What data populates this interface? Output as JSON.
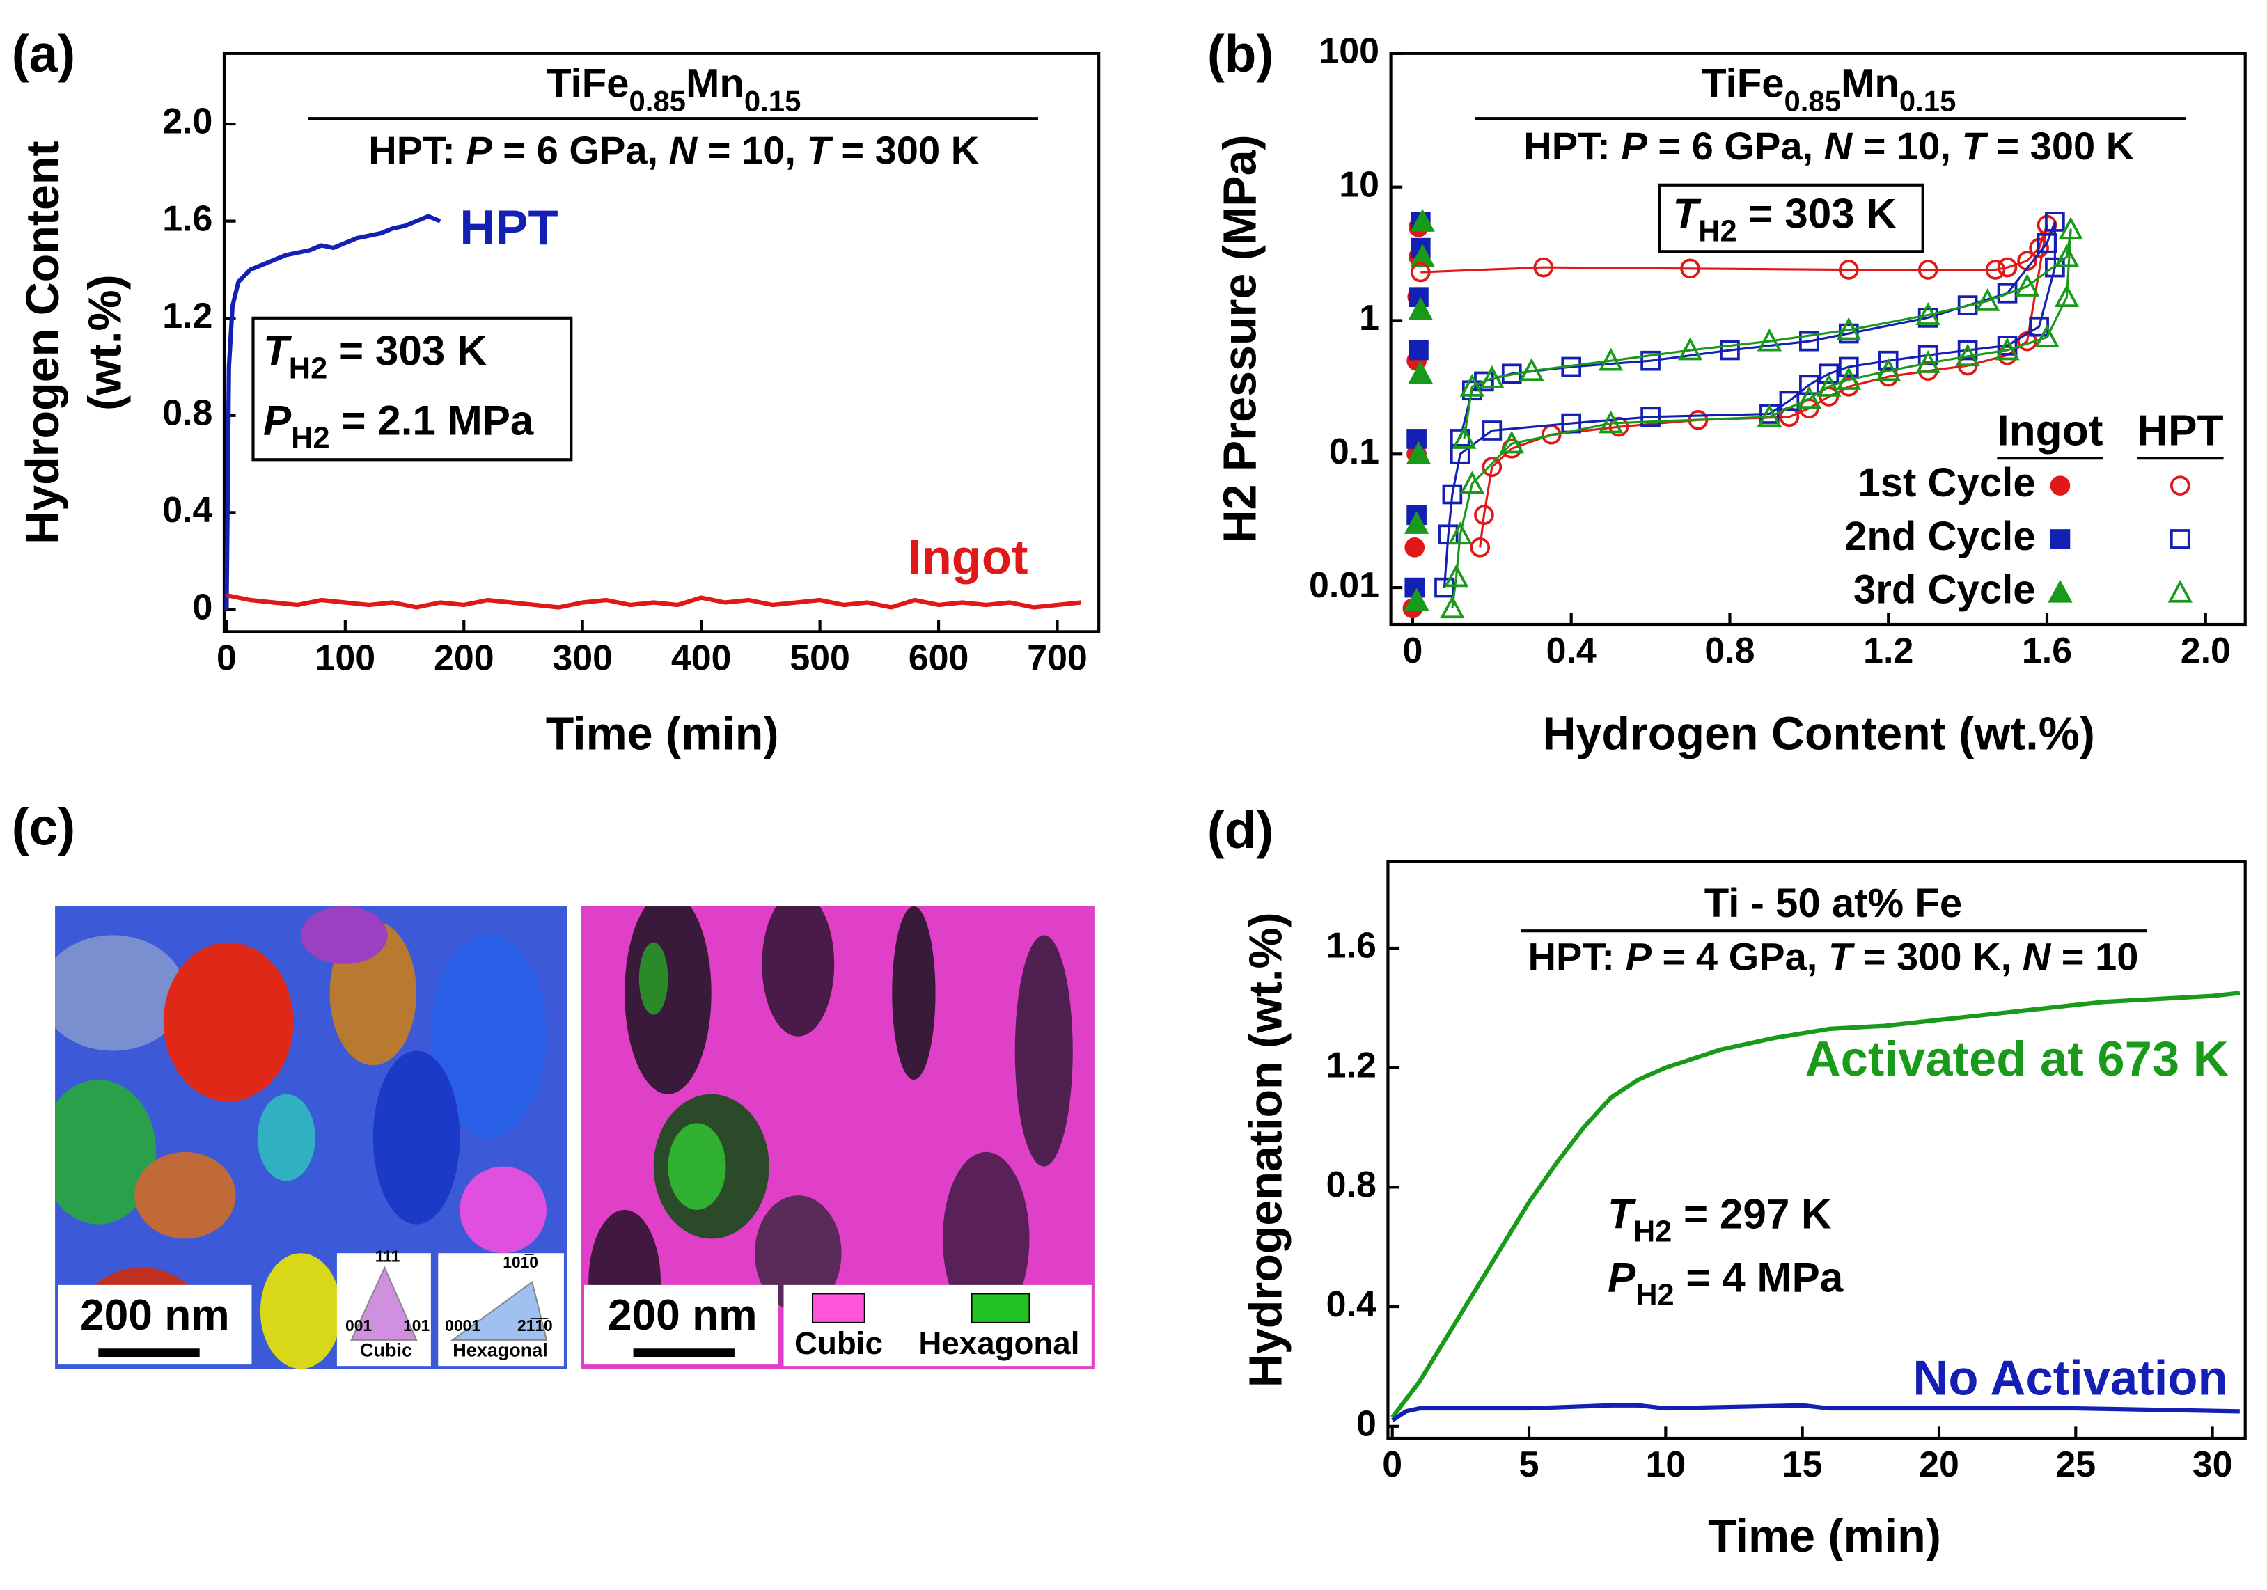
{
  "chart_data": [
    {
      "type": "line",
      "label": "(a)",
      "title": [
        {
          "text": "TiFe"
        },
        {
          "text": "0.85",
          "style": "sub"
        },
        {
          "text": "Mn"
        },
        {
          "text": "0.15",
          "style": "sub"
        }
      ],
      "subtitle": [
        {
          "text": "HPT: "
        },
        {
          "text": "P",
          "style": "i"
        },
        {
          "text": " = 6 GPa, "
        },
        {
          "text": "N",
          "style": "i"
        },
        {
          "text": " = 10, "
        },
        {
          "text": "T",
          "style": "i"
        },
        {
          "text": " = 300 K"
        }
      ],
      "annotations": [
        {
          "box": true,
          "lines": [
            [
              {
                "text": "T",
                "style": "i"
              },
              {
                "text": "H2",
                "style": "sub"
              },
              {
                "text": " = 303 K"
              }
            ],
            [
              {
                "text": "P",
                "style": "i"
              },
              {
                "text": "H2",
                "style": "sub"
              },
              {
                "text": " = 2.1 MPa"
              }
            ]
          ]
        }
      ],
      "xlabel": "Time (min)",
      "ylabel": [
        "Hydrogen Content",
        "(wt.%)"
      ],
      "xlim": [
        -2,
        735
      ],
      "ylim": [
        -0.09,
        2.29
      ],
      "xticks": [
        0,
        100,
        200,
        300,
        400,
        500,
        600,
        700
      ],
      "yticks": [
        0,
        0.4,
        0.8,
        1.2,
        1.6,
        {
          "value": 2,
          "label": "2.0"
        }
      ],
      "series": [
        {
          "name": "HPT",
          "color": "#1420b4",
          "x": [
            0,
            2,
            5,
            10,
            20,
            30,
            40,
            50,
            60,
            70,
            80,
            90,
            100,
            110,
            120,
            130,
            140,
            150,
            160,
            170,
            180
          ],
          "values": [
            0,
            1.0,
            1.25,
            1.35,
            1.4,
            1.42,
            1.44,
            1.46,
            1.47,
            1.48,
            1.5,
            1.49,
            1.51,
            1.53,
            1.54,
            1.55,
            1.57,
            1.58,
            1.6,
            1.62,
            1.6
          ]
        },
        {
          "name": "Ingot",
          "color": "#e01818",
          "x": [
            0,
            20,
            40,
            60,
            80,
            100,
            120,
            140,
            160,
            180,
            200,
            220,
            240,
            260,
            280,
            300,
            320,
            340,
            360,
            380,
            400,
            420,
            440,
            460,
            480,
            500,
            520,
            540,
            560,
            580,
            600,
            620,
            640,
            660,
            680,
            700,
            720
          ],
          "values": [
            0.06,
            0.04,
            0.03,
            0.02,
            0.04,
            0.03,
            0.02,
            0.03,
            0.01,
            0.03,
            0.02,
            0.04,
            0.03,
            0.02,
            0.01,
            0.03,
            0.04,
            0.02,
            0.03,
            0.02,
            0.05,
            0.03,
            0.04,
            0.02,
            0.03,
            0.04,
            0.02,
            0.03,
            0.01,
            0.04,
            0.02,
            0.03,
            0.02,
            0.03,
            0.01,
            0.02,
            0.03
          ]
        }
      ]
    },
    {
      "type": "line",
      "label": "(b)",
      "ylog": true,
      "title": [
        {
          "text": "TiFe"
        },
        {
          "text": "0.85",
          "style": "sub"
        },
        {
          "text": "Mn"
        },
        {
          "text": "0.15",
          "style": "sub"
        }
      ],
      "subtitle": [
        {
          "text": "HPT: "
        },
        {
          "text": "P",
          "style": "i"
        },
        {
          "text": " = 6 GPa, "
        },
        {
          "text": "N",
          "style": "i"
        },
        {
          "text": " = 10, "
        },
        {
          "text": "T",
          "style": "i"
        },
        {
          "text": " = 300 K"
        }
      ],
      "annotations": [
        {
          "box": true,
          "lines": [
            [
              {
                "text": "T",
                "style": "i"
              },
              {
                "text": "H2",
                "style": "sub"
              },
              {
                "text": " = 303 K"
              }
            ]
          ]
        }
      ],
      "xlabel": "Hydrogen Content (wt.%)",
      "ylabel": [
        "H2 Pressure (MPa)"
      ],
      "xlim": [
        -0.055,
        2.1
      ],
      "ylim": [
        0.0053,
        100
      ],
      "xticks": [
        0,
        0.4,
        0.8,
        1.2,
        1.6,
        {
          "value": 2,
          "label": "2.0"
        }
      ],
      "yticks": [
        0.01,
        0.1,
        1,
        10,
        100
      ],
      "legend_columns": [
        "Ingot",
        "HPT"
      ],
      "legend_rows": [
        "1st Cycle",
        "2nd Cycle",
        "3rd Cycle"
      ],
      "series": [
        {
          "legend_column": 0,
          "legend_row": 0,
          "color": "#e01818",
          "marker": "circle",
          "filled": true,
          "line": false,
          "x": [
            0.0,
            0.005,
            0.01,
            0.01,
            0.012,
            0.015,
            0.015
          ],
          "values": [
            0.007,
            0.02,
            0.1,
            0.5,
            1.5,
            3,
            5
          ]
        },
        {
          "legend_column": 0,
          "legend_row": 1,
          "color": "#1420b4",
          "marker": "square",
          "filled": true,
          "line": false,
          "x": [
            0.005,
            0.01,
            0.01,
            0.015,
            0.015,
            0.02,
            0.02
          ],
          "values": [
            0.01,
            0.035,
            0.13,
            0.6,
            1.5,
            3.5,
            5.5
          ]
        },
        {
          "legend_column": 0,
          "legend_row": 2,
          "color": "#1a9a1a",
          "marker": "triangle",
          "filled": true,
          "line": false,
          "x": [
            0.01,
            0.01,
            0.015,
            0.02,
            0.02,
            0.025,
            0.025
          ],
          "values": [
            0.008,
            0.03,
            0.1,
            0.4,
            1.2,
            3,
            5.5
          ]
        },
        {
          "legend_column": 1,
          "legend_row": 0,
          "color": "#e01818",
          "marker": "circle",
          "filled": false,
          "line": true,
          "x": [
            0.17,
            0.18,
            0.2,
            0.25,
            0.35,
            0.52,
            0.72,
            0.95,
            1.0,
            1.05,
            1.1,
            1.2,
            1.3,
            1.4,
            1.5,
            1.55,
            1.6,
            1.58,
            1.55,
            1.5,
            1.47,
            1.3,
            1.1,
            0.7,
            0.33,
            0.02
          ],
          "values": [
            0.02,
            0.035,
            0.08,
            0.11,
            0.14,
            0.16,
            0.18,
            0.19,
            0.22,
            0.27,
            0.32,
            0.38,
            0.42,
            0.46,
            0.55,
            0.7,
            5.2,
            3.5,
            2.8,
            2.5,
            2.4,
            2.4,
            2.4,
            2.45,
            2.5,
            2.3
          ]
        },
        {
          "legend_column": 1,
          "legend_row": 1,
          "color": "#1420b4",
          "marker": "square",
          "filled": false,
          "line": true,
          "x": [
            0.08,
            0.09,
            0.1,
            0.12,
            0.2,
            0.4,
            0.6,
            0.9,
            0.95,
            1.0,
            1.05,
            1.1,
            1.2,
            1.3,
            1.4,
            1.5,
            1.58,
            1.62,
            1.62,
            1.6,
            1.5,
            1.4,
            1.3,
            1.1,
            1.0,
            0.8,
            0.6,
            0.4,
            0.25,
            0.18,
            0.15,
            0.12
          ],
          "values": [
            0.01,
            0.025,
            0.05,
            0.1,
            0.15,
            0.17,
            0.19,
            0.2,
            0.25,
            0.33,
            0.4,
            0.45,
            0.5,
            0.55,
            0.6,
            0.65,
            0.9,
            2.5,
            5.5,
            3.8,
            1.6,
            1.3,
            1.05,
            0.8,
            0.7,
            0.6,
            0.5,
            0.45,
            0.4,
            0.35,
            0.3,
            0.13
          ]
        },
        {
          "legend_column": 1,
          "legend_row": 2,
          "color": "#1a9a1a",
          "marker": "triangle",
          "filled": false,
          "line": true,
          "x": [
            0.1,
            0.11,
            0.12,
            0.15,
            0.25,
            0.5,
            0.9,
            1.0,
            1.05,
            1.1,
            1.2,
            1.3,
            1.4,
            1.5,
            1.6,
            1.65,
            1.66,
            1.65,
            1.55,
            1.45,
            1.3,
            1.1,
            0.9,
            0.7,
            0.5,
            0.3,
            0.2,
            0.15,
            0.13
          ],
          "values": [
            0.007,
            0.012,
            0.025,
            0.06,
            0.12,
            0.17,
            0.19,
            0.26,
            0.32,
            0.36,
            0.42,
            0.48,
            0.54,
            0.6,
            0.75,
            1.5,
            4.8,
            3.0,
            1.8,
            1.4,
            1.1,
            0.85,
            0.7,
            0.6,
            0.5,
            0.42,
            0.37,
            0.32,
            0.13
          ]
        }
      ]
    },
    {
      "type": "line",
      "label": "(d)",
      "title": [
        {
          "text": "Ti - 50 at% Fe"
        }
      ],
      "subtitle": [
        {
          "text": "HPT: "
        },
        {
          "text": "P",
          "style": "i"
        },
        {
          "text": " = 4 GPa, "
        },
        {
          "text": "T",
          "style": "i"
        },
        {
          "text": " = 300 K, "
        },
        {
          "text": "N",
          "style": "i"
        },
        {
          "text": " = 10"
        }
      ],
      "annotations": [
        {
          "box": false,
          "lines": [
            [
              {
                "text": "T",
                "style": "i"
              },
              {
                "text": "H2",
                "style": "sub"
              },
              {
                "text": " = 297 K"
              }
            ],
            [
              {
                "text": "P",
                "style": "i"
              },
              {
                "text": "H2",
                "style": "sub"
              },
              {
                "text": " = 4 MPa"
              }
            ]
          ]
        }
      ],
      "xlabel": "Time (min)",
      "ylabel": [
        "Hydrogenation (wt.%)"
      ],
      "xlim": [
        -0.16,
        31.2
      ],
      "ylim": [
        -0.04,
        1.89
      ],
      "xticks": [
        0,
        5,
        10,
        15,
        20,
        25,
        30
      ],
      "yticks": [
        0,
        0.4,
        0.8,
        1.2,
        1.6
      ],
      "series": [
        {
          "name": "Activated at 673 K",
          "color": "#1a9a1a",
          "x": [
            0,
            1,
            2,
            3,
            4,
            5,
            6,
            7,
            8,
            9,
            10,
            12,
            14,
            16,
            18,
            20,
            22,
            24,
            26,
            28,
            30,
            31
          ],
          "values": [
            0.03,
            0.15,
            0.3,
            0.45,
            0.6,
            0.75,
            0.88,
            1.0,
            1.1,
            1.16,
            1.2,
            1.26,
            1.3,
            1.33,
            1.34,
            1.36,
            1.38,
            1.4,
            1.42,
            1.43,
            1.44,
            1.45
          ]
        },
        {
          "name": "No Activation",
          "color": "#1420b4",
          "x": [
            0,
            0.5,
            1,
            3,
            5,
            8,
            9,
            10,
            15,
            16,
            20,
            25,
            31
          ],
          "values": [
            0.02,
            0.05,
            0.06,
            0.06,
            0.06,
            0.07,
            0.07,
            0.06,
            0.07,
            0.06,
            0.06,
            0.06,
            0.05
          ]
        }
      ]
    }
  ],
  "panel_c": {
    "label": "(c)",
    "scale_bars": [
      "200 nm",
      "200 nm"
    ],
    "cubic_key": {
      "top": "111",
      "left": "001",
      "right": "101",
      "name": "Cubic"
    },
    "hex_key": {
      "top": "101̅0",
      "left": "0001",
      "right": "21̅1̅0",
      "name": "Hexagonal"
    },
    "phase_legend": [
      "Cubic",
      "Hexagonal"
    ]
  }
}
